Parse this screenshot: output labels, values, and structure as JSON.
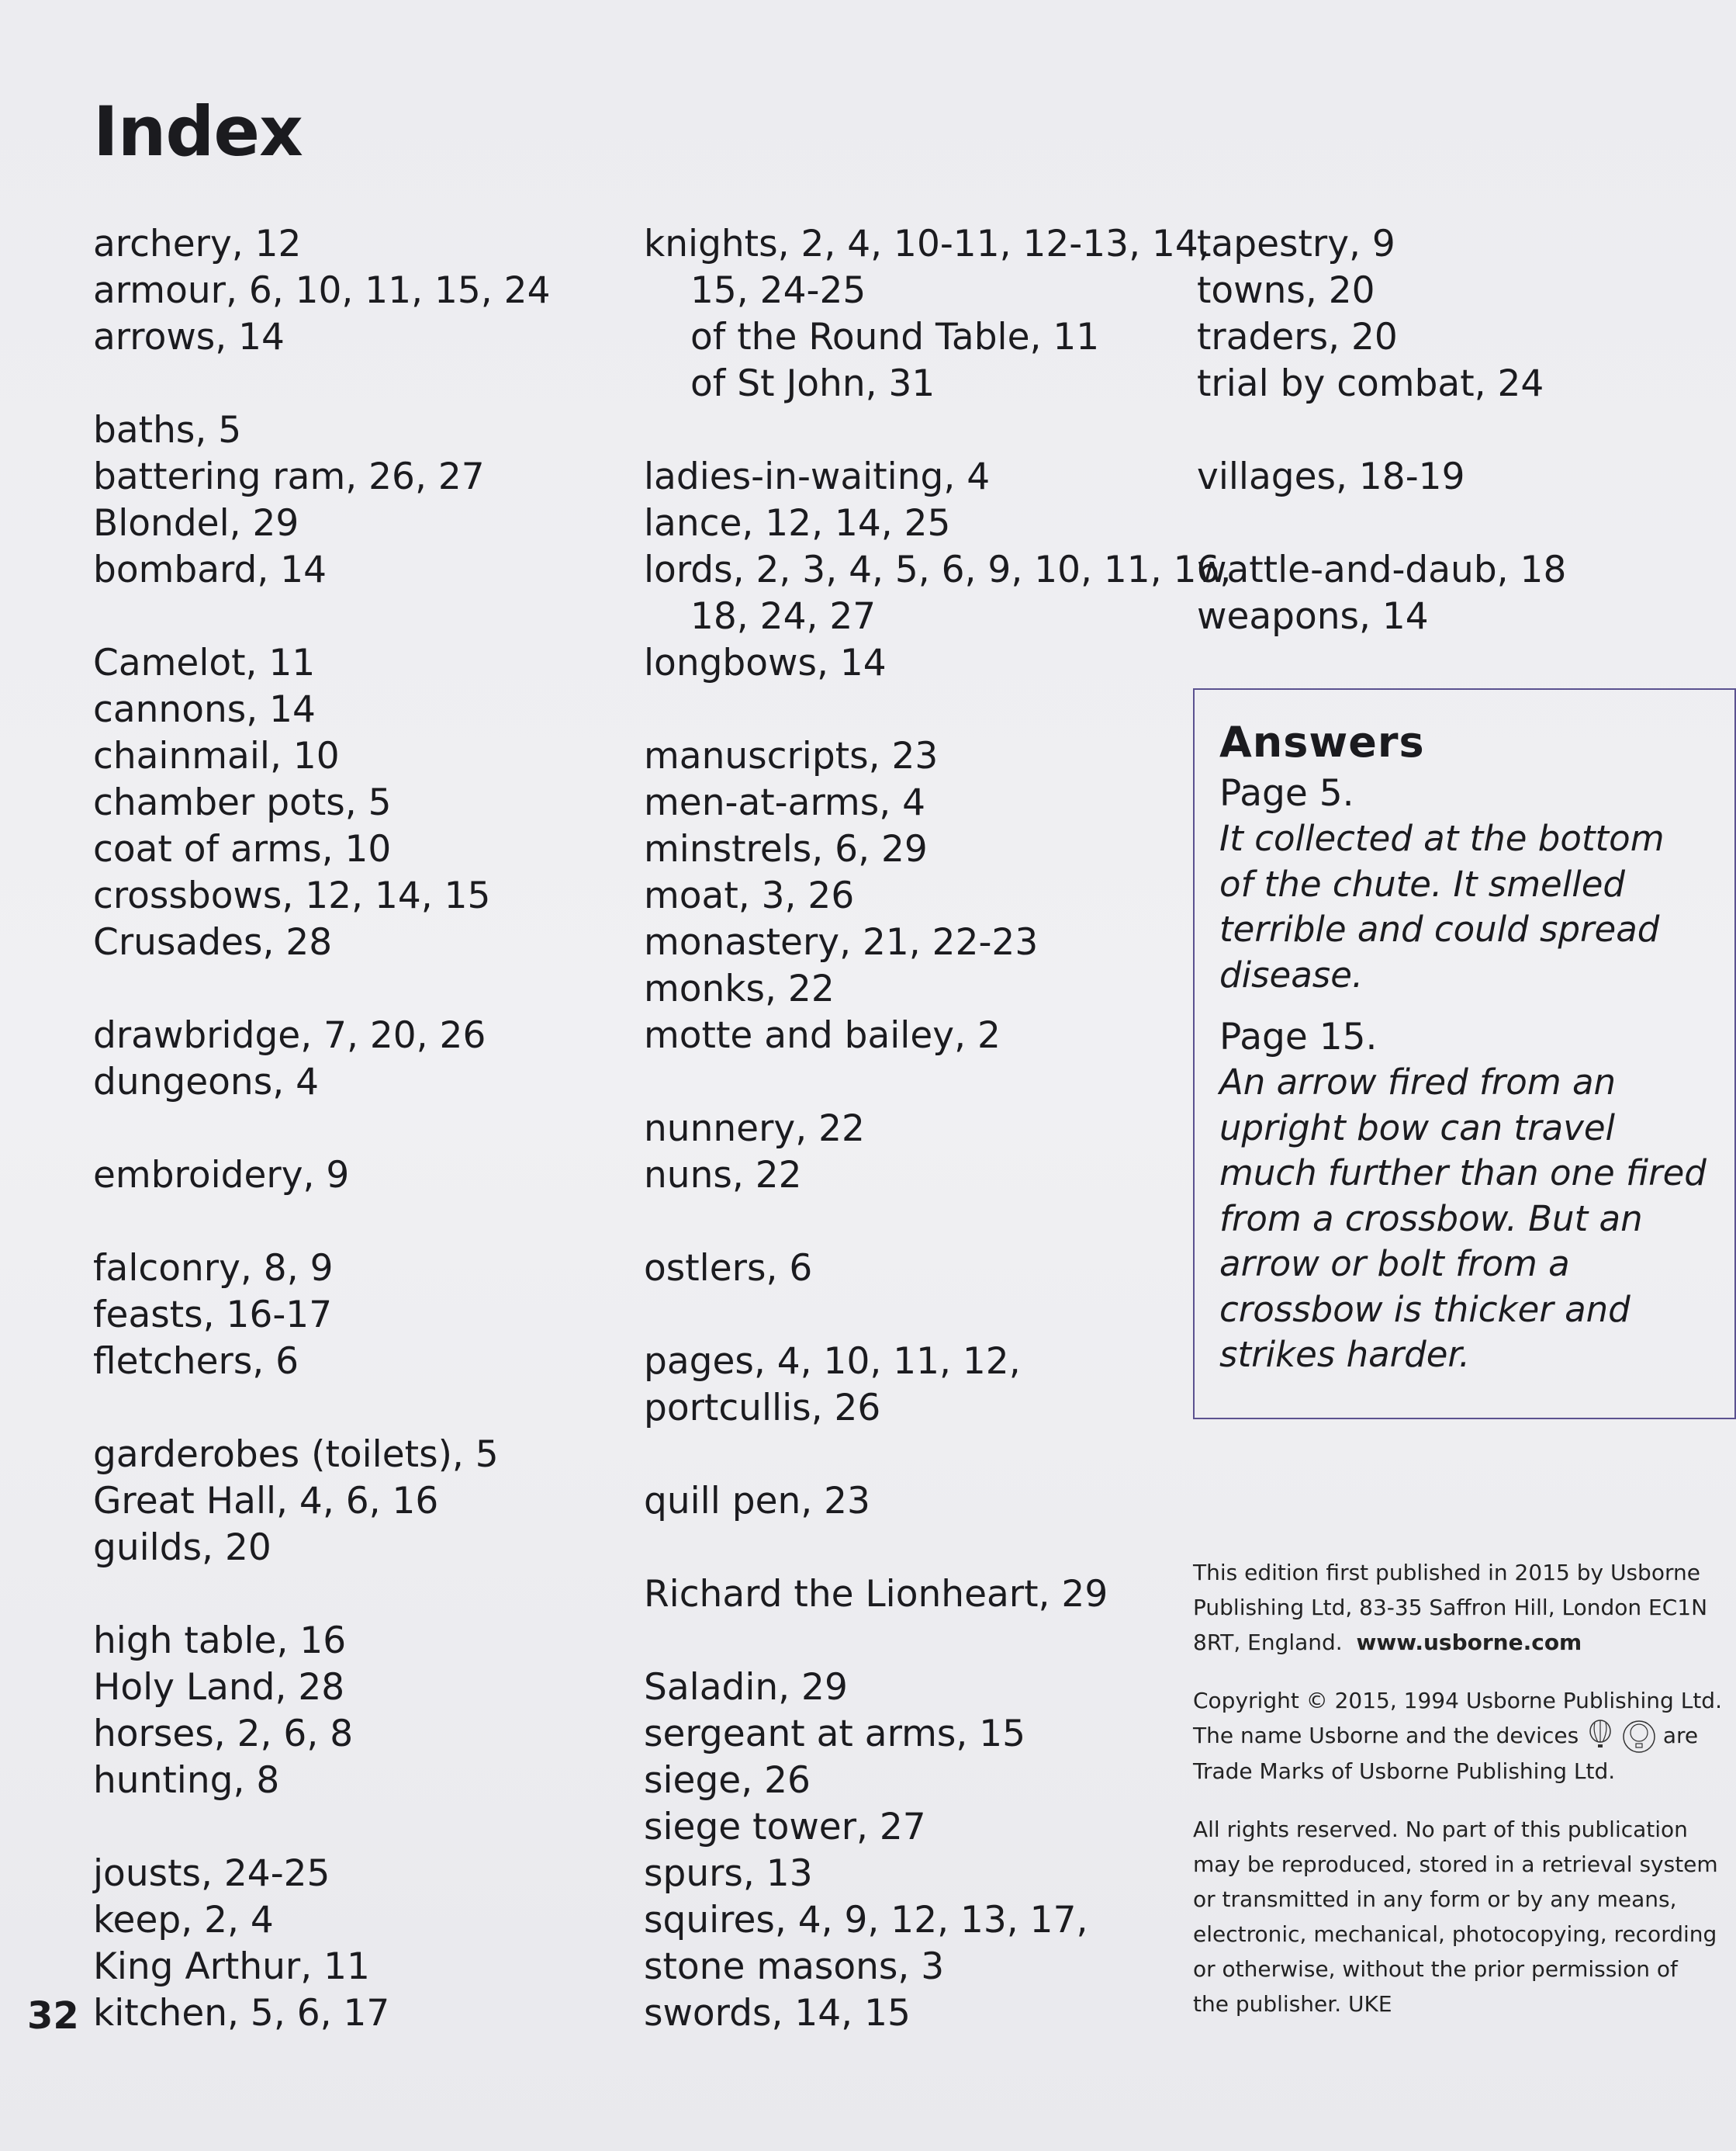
{
  "title": "Index",
  "page_number": "32",
  "columns": [
    [
      "archery, 12",
      "armour, 6, 10, 11, 15, 24",
      "arrows, 14",
      "",
      "baths, 5",
      "battering ram, 26, 27",
      "Blondel, 29",
      "bombard, 14",
      "",
      "Camelot, 11",
      "cannons, 14",
      "chainmail, 10",
      "chamber pots, 5",
      "coat of arms, 10",
      "crossbows, 12, 14, 15",
      "Crusades, 28",
      "",
      "drawbridge, 7, 20, 26",
      "dungeons, 4",
      "",
      "embroidery, 9",
      "",
      "falconry, 8, 9",
      "feasts, 16-17",
      "fletchers, 6",
      "",
      "garderobes (toilets), 5",
      "Great Hall, 4, 6, 16",
      "guilds, 20",
      "",
      "high table, 16",
      "Holy Land, 28",
      "horses, 2, 6, 8",
      "hunting, 8",
      "",
      "jousts, 24-25",
      "keep, 2, 4",
      "King Arthur, 11",
      "kitchen, 5, 6, 17"
    ],
    [
      "knights, 2, 4, 10-11, 12-13, 14,",
      ">15, 24-25",
      ">of the Round Table, 11",
      ">of St John, 31",
      "",
      "ladies-in-waiting, 4",
      "lance, 12, 14, 25",
      "lords, 2, 3, 4, 5, 6, 9, 10, 11, 16,",
      ">18, 24, 27",
      "longbows, 14",
      "",
      "manuscripts, 23",
      "men-at-arms, 4",
      "minstrels, 6, 29",
      "moat, 3, 26",
      "monastery, 21, 22-23",
      "monks, 22",
      "motte and bailey, 2",
      "",
      "nunnery, 22",
      "nuns, 22",
      "",
      "ostlers, 6",
      "",
      "pages, 4, 10, 11, 12,",
      "portcullis, 26",
      "",
      "quill pen, 23",
      "",
      "Richard the Lionheart, 29",
      "",
      "Saladin, 29",
      "sergeant at arms, 15",
      "siege, 26",
      "siege tower, 27",
      "spurs, 13",
      "squires, 4, 9, 12, 13, 17,",
      "stone masons, 3",
      "swords, 14, 15"
    ],
    [
      "tapestry, 9",
      "towns, 20",
      "traders, 20",
      "trial by combat, 24",
      "",
      "villages, 18-19",
      "",
      "wattle-and-daub, 18",
      "weapons, 14"
    ]
  ],
  "answers": {
    "heading": "Answers",
    "items": [
      {
        "page": "Page 5.",
        "lines": [
          "It collected at the bottom",
          "of the chute. It smelled",
          "terrible and could spread",
          "disease."
        ]
      },
      {
        "page": "Page 15.",
        "lines": [
          "An arrow fired from an",
          "upright bow can travel",
          "much further than one fired",
          "from a crossbow. But an",
          "arrow or bolt from a",
          "crossbow is thicker and",
          "strikes harder."
        ]
      }
    ]
  },
  "imprint": {
    "p1": [
      "This edition first published in 2015 by Usborne",
      "Publishing Ltd, 83-35 Saffron Hill, London EC1N"
    ],
    "p1_last": "8RT, England.",
    "url": "www.usborne.com",
    "p2_line1": "Copyright © 2015, 1994 Usborne Publishing Ltd.",
    "p2_line2a": "The name Usborne and the devices",
    "p2_line2b": "are",
    "p2_line3": "Trade Marks of Usborne Publishing Ltd.",
    "device_labels": [
      "USBORNE",
      "USBORNE"
    ],
    "p3": [
      "All rights reserved. No part of this publication",
      "may be reproduced, stored in a retrieval system",
      "or transmitted in any form or by any means,",
      "electronic, mechanical, photocopying, recording",
      "or otherwise, without the prior permission of",
      "the publisher. UKE"
    ]
  },
  "colors": {
    "text": "#1b1b1f",
    "answers_border": "#5b5290",
    "background": "#eeeef1"
  }
}
